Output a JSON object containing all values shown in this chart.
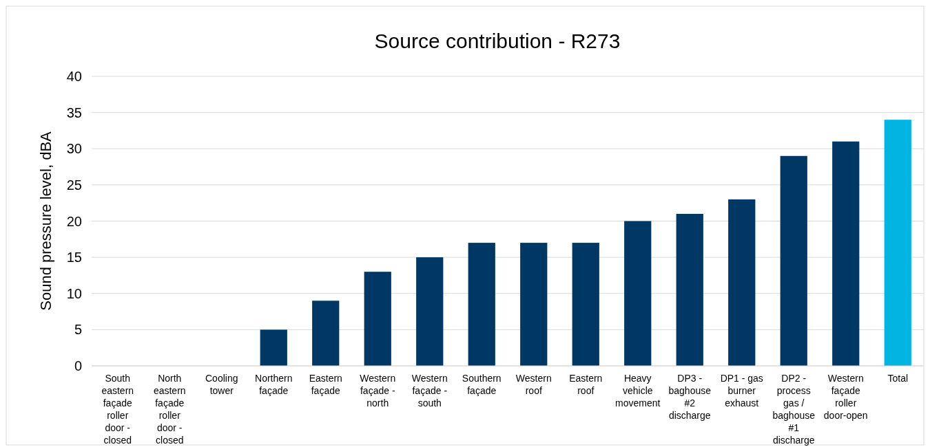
{
  "chart_data": {
    "type": "bar",
    "title": "Source contribution - R273",
    "ylabel": "Sound pressure level, dBA",
    "categories": [
      "South eastern façade roller door - closed",
      "North eastern façade roller door - closed",
      "Cooling tower",
      "Northern façade",
      "Eastern façade",
      "Western façade - north",
      "Western façade - south",
      "Southern façade",
      "Western roof",
      "Eastern roof",
      "Heavy vehicle movement",
      "DP3 - baghouse #2 discharge",
      "DP1 - gas burner exhaust",
      "DP2 - process gas / baghouse #1 discharge",
      "Western façade roller door-open",
      "Total"
    ],
    "values": [
      0,
      0,
      0,
      5,
      9,
      13,
      15,
      17,
      17,
      17,
      20,
      21,
      23,
      29,
      31,
      34
    ],
    "colors": [
      "#003865",
      "#003865",
      "#003865",
      "#003865",
      "#003865",
      "#003865",
      "#003865",
      "#003865",
      "#003865",
      "#003865",
      "#003865",
      "#003865",
      "#003865",
      "#003865",
      "#003865",
      "#00b5e2"
    ],
    "ylim": [
      0,
      40
    ],
    "yticks": [
      0,
      5,
      10,
      15,
      20,
      25,
      30,
      35,
      40
    ],
    "grid": "y"
  }
}
